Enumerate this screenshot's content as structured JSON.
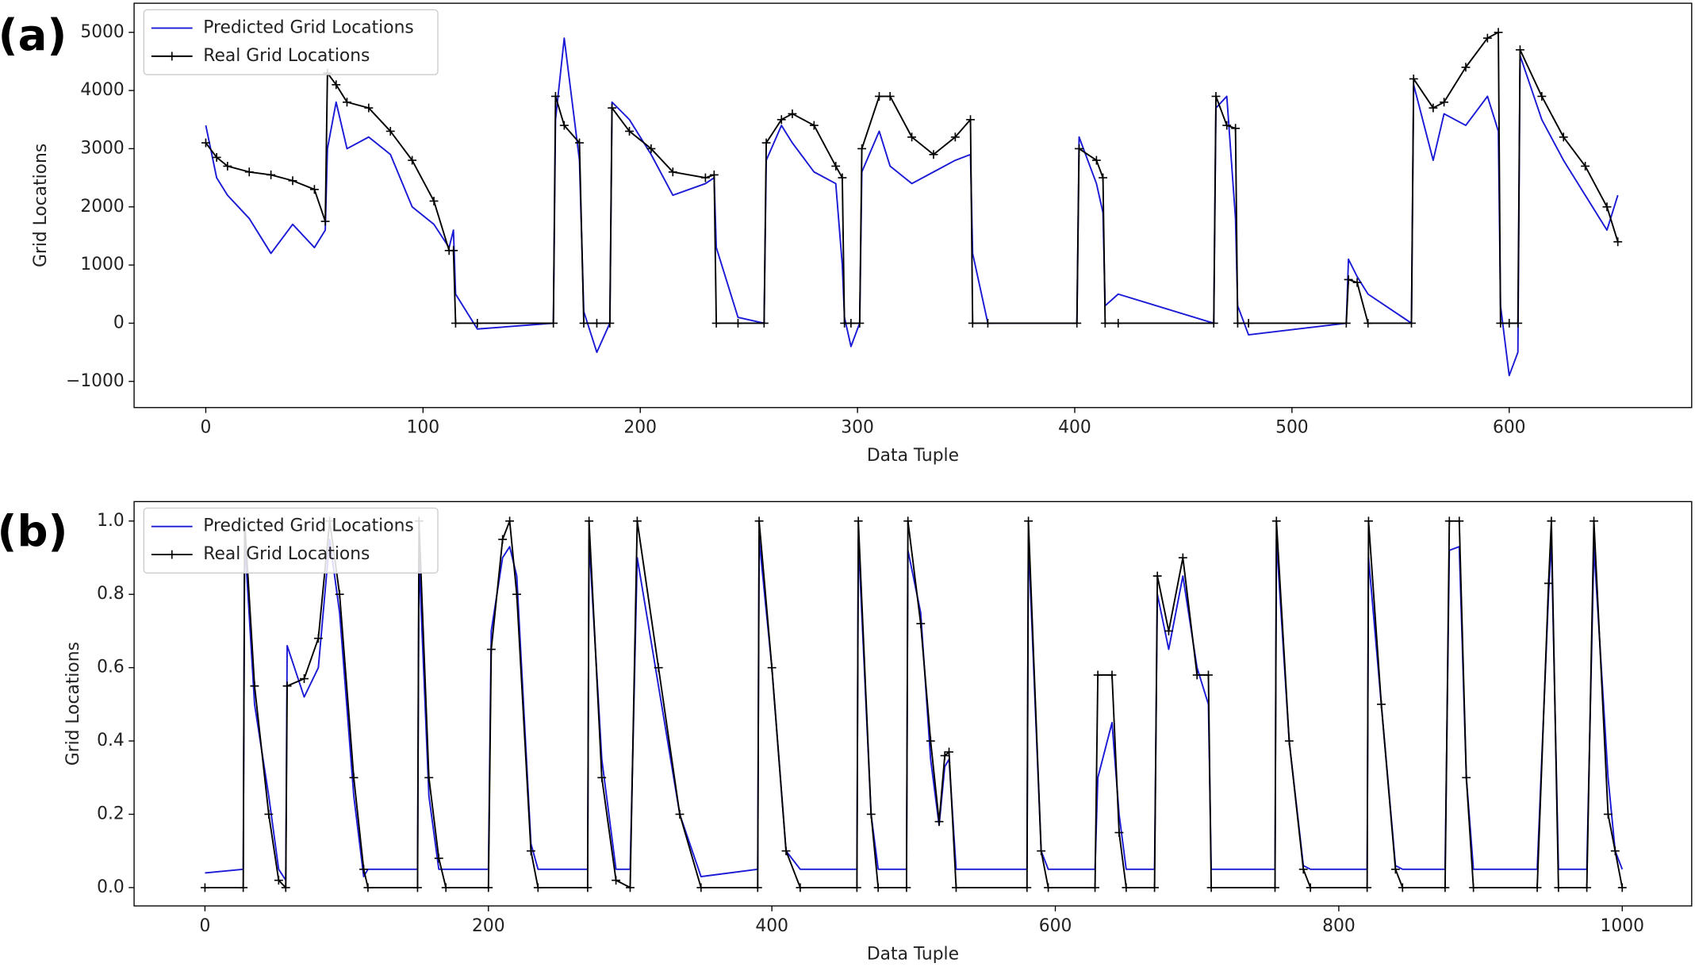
{
  "chart_data": [
    {
      "type": "line",
      "label": "(a)",
      "xlabel": "Data Tuple",
      "ylabel": "Grid Locations",
      "legend": "upper left",
      "xlim": [
        -33,
        684
      ],
      "ylim": [
        -1450,
        5500
      ],
      "xticks": [
        0,
        100,
        200,
        300,
        400,
        500,
        600
      ],
      "yticks": [
        {
          "value": -1000,
          "label": "−1000"
        },
        0,
        1000,
        2000,
        3000,
        4000,
        5000
      ],
      "x": [
        0,
        5,
        10,
        20,
        30,
        40,
        50,
        55,
        56,
        60,
        65,
        75,
        85,
        95,
        105,
        112,
        114,
        115,
        125,
        160,
        161,
        165,
        172,
        174,
        180,
        186,
        187,
        195,
        205,
        215,
        230,
        234,
        235,
        245,
        257,
        258,
        265,
        270,
        280,
        290,
        293,
        294,
        297,
        301,
        302,
        310,
        315,
        325,
        335,
        345,
        352,
        353,
        360,
        401,
        402,
        410,
        413,
        414,
        420,
        464,
        465,
        470,
        474,
        475,
        480,
        525,
        526,
        530,
        535,
        555,
        556,
        565,
        570,
        580,
        590,
        595,
        596,
        600,
        604,
        605,
        615,
        625,
        635,
        645,
        650
      ],
      "series": [
        {
          "name": "Predicted Grid Locations",
          "color": "#1a1ad6",
          "values": [
            3400,
            2500,
            2200,
            1800,
            1200,
            1700,
            1300,
            1600,
            3000,
            3800,
            3000,
            3200,
            2900,
            2000,
            1700,
            1300,
            1600,
            500,
            -100,
            0,
            3500,
            4900,
            2800,
            200,
            -500,
            0,
            3800,
            3500,
            2900,
            2200,
            2400,
            2500,
            1300,
            100,
            0,
            2800,
            3400,
            3100,
            2600,
            2400,
            1000,
            100,
            -400,
            0,
            2600,
            3300,
            2700,
            2400,
            2600,
            2800,
            2900,
            1200,
            0,
            0,
            3200,
            2400,
            1900,
            300,
            500,
            0,
            3700,
            3900,
            1800,
            300,
            -200,
            0,
            1100,
            800,
            500,
            0,
            4100,
            2800,
            3600,
            3400,
            3900,
            3300,
            300,
            -900,
            -500,
            4600,
            3500,
            2800,
            2200,
            1600,
            2200
          ]
        },
        {
          "name": "Real Grid Locations",
          "color": "#000000",
          "marker": "+",
          "values": [
            3100,
            2850,
            2700,
            2600,
            2550,
            2450,
            2300,
            1750,
            4300,
            4100,
            3800,
            3700,
            3300,
            2800,
            2100,
            1250,
            1250,
            0,
            0,
            0,
            3900,
            3400,
            3100,
            0,
            0,
            0,
            3700,
            3300,
            3000,
            2600,
            2500,
            2550,
            0,
            0,
            0,
            3100,
            3500,
            3600,
            3400,
            2700,
            2500,
            0,
            0,
            0,
            3000,
            3900,
            3900,
            3200,
            2900,
            3200,
            3500,
            0,
            0,
            0,
            3000,
            2800,
            2500,
            0,
            0,
            0,
            3900,
            3400,
            3350,
            0,
            0,
            0,
            750,
            700,
            0,
            0,
            4200,
            3700,
            3800,
            4400,
            4900,
            5000,
            0,
            0,
            0,
            4700,
            3900,
            3200,
            2700,
            2000,
            1400
          ]
        }
      ]
    },
    {
      "type": "line",
      "label": "(b)",
      "xlabel": "Data Tuple",
      "ylabel": "Grid Locations",
      "legend": "upper left",
      "xlim": [
        -50,
        1049
      ],
      "ylim": [
        -0.05,
        1.053
      ],
      "xticks": [
        0,
        200,
        400,
        600,
        800,
        1000
      ],
      "yticks": [
        {
          "value": 0,
          "label": "0.0"
        },
        0.2,
        0.4,
        0.6,
        0.8,
        {
          "value": 1,
          "label": "1.0"
        }
      ],
      "x": [
        0,
        27,
        28,
        35,
        45,
        52,
        57,
        58,
        70,
        80,
        88,
        95,
        105,
        112,
        115,
        150,
        151,
        158,
        165,
        170,
        200,
        202,
        210,
        215,
        220,
        230,
        235,
        270,
        271,
        280,
        290,
        300,
        305,
        320,
        335,
        350,
        390,
        391,
        400,
        410,
        420,
        460,
        461,
        470,
        475,
        495,
        496,
        505,
        512,
        518,
        522,
        525,
        530,
        580,
        581,
        590,
        595,
        628,
        630,
        640,
        645,
        650,
        670,
        672,
        680,
        690,
        700,
        708,
        710,
        755,
        756,
        765,
        775,
        780,
        820,
        821,
        830,
        840,
        845,
        875,
        878,
        885,
        890,
        895,
        940,
        948,
        950,
        955,
        975,
        980,
        990,
        995,
        1000
      ],
      "series": [
        {
          "name": "Predicted Grid Locations",
          "color": "#1a1ad6",
          "values": [
            0.04,
            0.05,
            0.95,
            0.5,
            0.25,
            0.05,
            0.02,
            0.66,
            0.52,
            0.6,
            0.95,
            0.75,
            0.25,
            0.03,
            0.05,
            0.05,
            0.9,
            0.25,
            0.05,
            0.05,
            0.05,
            0.7,
            0.9,
            0.93,
            0.85,
            0.12,
            0.05,
            0.05,
            0.95,
            0.35,
            0.05,
            0.05,
            0.9,
            0.55,
            0.2,
            0.03,
            0.05,
            0.95,
            0.6,
            0.1,
            0.05,
            0.05,
            0.95,
            0.2,
            0.05,
            0.05,
            0.92,
            0.75,
            0.35,
            0.17,
            0.33,
            0.35,
            0.05,
            0.05,
            0.95,
            0.1,
            0.05,
            0.05,
            0.3,
            0.45,
            0.2,
            0.05,
            0.05,
            0.8,
            0.65,
            0.85,
            0.6,
            0.5,
            0.05,
            0.05,
            0.95,
            0.4,
            0.06,
            0.05,
            0.05,
            0.9,
            0.5,
            0.06,
            0.05,
            0.05,
            0.92,
            0.93,
            0.3,
            0.05,
            0.05,
            0.8,
            0.95,
            0.05,
            0.05,
            0.93,
            0.3,
            0.1,
            0.05
          ]
        },
        {
          "name": "Real Grid Locations",
          "color": "#000000",
          "marker": "+",
          "values": [
            0,
            0,
            1.0,
            0.55,
            0.2,
            0.02,
            0,
            0.55,
            0.57,
            0.68,
            1.0,
            0.8,
            0.3,
            0.05,
            0,
            0,
            1.0,
            0.3,
            0.08,
            0,
            0,
            0.65,
            0.95,
            1.0,
            0.8,
            0.1,
            0,
            0,
            1.0,
            0.3,
            0.02,
            0,
            1.0,
            0.6,
            0.2,
            0,
            0,
            1.0,
            0.6,
            0.1,
            0,
            0,
            1.0,
            0.2,
            0,
            0,
            1.0,
            0.72,
            0.4,
            0.18,
            0.36,
            0.37,
            0,
            0,
            1.0,
            0.1,
            0,
            0,
            0.58,
            0.58,
            0.15,
            0,
            0,
            0.85,
            0.7,
            0.9,
            0.58,
            0.58,
            0,
            0,
            1.0,
            0.4,
            0.05,
            0,
            0,
            1.0,
            0.5,
            0.05,
            0,
            0,
            1.0,
            1.0,
            0.3,
            0,
            0,
            0.83,
            1.0,
            0,
            0,
            1.0,
            0.2,
            0.1,
            0
          ]
        }
      ]
    }
  ]
}
